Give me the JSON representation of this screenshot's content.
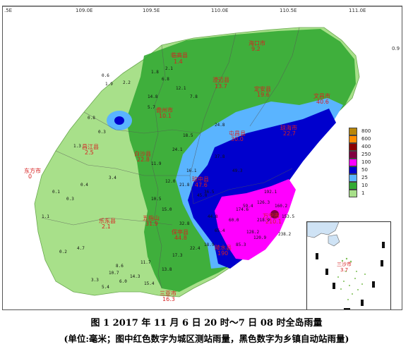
{
  "map": {
    "longitude_ticks": [
      "109.0E",
      "109.5E",
      "110.0E",
      "110.5E",
      "111.0E"
    ],
    "edge_ticks": [
      ".5E",
      "0.9"
    ],
    "legend": [
      {
        "label": "800",
        "color": "#b8860b"
      },
      {
        "label": "600",
        "color": "#ff8c00"
      },
      {
        "label": "400",
        "color": "#8b0000"
      },
      {
        "label": "250",
        "color": "#800040"
      },
      {
        "label": "100",
        "color": "#ff00ff"
      },
      {
        "label": "50",
        "color": "#0000cd"
      },
      {
        "label": "25",
        "color": "#5ab4ff"
      },
      {
        "label": "10",
        "color": "#33aa33"
      },
      {
        "label": "1",
        "color": "#a8e08a"
      }
    ],
    "city_labels": [
      {
        "text": "临高县",
        "value": "1.4"
      },
      {
        "text": "海口市",
        "value": "9.2"
      },
      {
        "text": "澄迈县",
        "value": "13.7"
      },
      {
        "text": "定安县",
        "value": "19.6"
      },
      {
        "text": "文昌市",
        "value": "40.6"
      },
      {
        "text": "儋州市",
        "value": "10.1"
      },
      {
        "text": "屯昌县",
        "value": "30.0"
      },
      {
        "text": "琼海市",
        "value": "22.7"
      },
      {
        "text": "白沙县",
        "value": "22.8"
      },
      {
        "text": "昌江县",
        "value": "2.5"
      },
      {
        "text": "东方市",
        "value": "0"
      },
      {
        "text": "琼中县",
        "value": "47.6"
      },
      {
        "text": "乐东县",
        "value": "2.1"
      },
      {
        "text": "五指山",
        "value": "31.9"
      },
      {
        "text": "保亭县",
        "value": "44.8"
      },
      {
        "text": "陵水县",
        "value": "190"
      },
      {
        "text": "万宁市",
        "value": "210.1"
      },
      {
        "text": "三亚市",
        "value": "16.3"
      }
    ],
    "station_values": [
      "0.6",
      "1.9",
      "2.2",
      "0.8",
      "0.3",
      "1.3",
      "14.8",
      "5.7",
      "12.1",
      "7.8",
      "6.8",
      "1.8",
      "2.1",
      "3.4",
      "0.4",
      "0.1",
      "0.3",
      "1.1",
      "10.5",
      "24.1",
      "44.8",
      "18.5",
      "16.1",
      "12.0",
      "21.8",
      "45.0",
      "37.8",
      "49.3",
      "24.8",
      "11.9",
      "15.0",
      "32.8",
      "36.5",
      "59.4",
      "126.3",
      "128.2",
      "153.5",
      "160.2",
      "174.6",
      "192.1",
      "218.9",
      "238.2",
      "120.9",
      "85.3",
      "65.4",
      "60.0",
      "18.9",
      "22.4",
      "17.3",
      "13.8",
      "11.7",
      "8.6",
      "0.2",
      "4.7",
      "10.7",
      "14.3",
      "15.4",
      "3.3",
      "5.4",
      "6.0"
    ],
    "inset": {
      "label": "三沙市",
      "value": "3.7"
    }
  },
  "caption": {
    "line1": "图 1 2017 年 11 月 6 日 20 时～7 日 08 时全岛雨量",
    "line2": "(单位:毫米；图中红色数字为城区测站雨量，黑色数字为乡镇自动站雨量)"
  }
}
